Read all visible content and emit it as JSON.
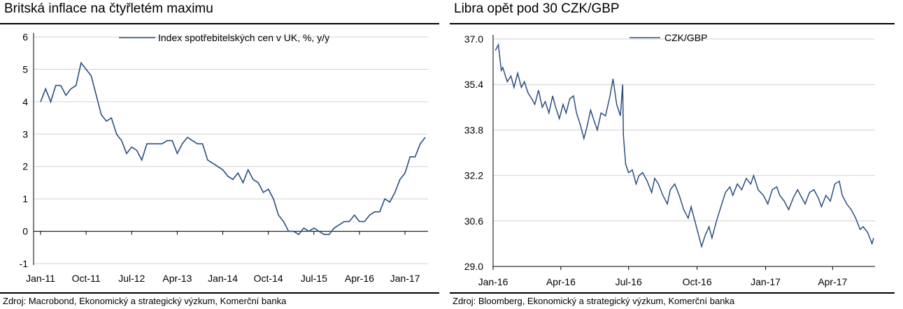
{
  "chart_data": [
    {
      "type": "line",
      "title": "Britská inflace na čtyřletém maximu",
      "source": "Zdroj: Macrobond, Ekonomický a strategický výzkum, Komerční banka",
      "ylim": [
        -1,
        6
      ],
      "yticks": [
        "6",
        "5",
        "4",
        "3",
        "2",
        "1",
        "0",
        "-1"
      ],
      "xticks": [
        "Jan-11",
        "Oct-11",
        "Jul-12",
        "Apr-13",
        "Jan-14",
        "Oct-14",
        "Jul-15",
        "Apr-16",
        "Jan-17"
      ],
      "grid": true,
      "legend_position": "top",
      "line_color": "#2b4f7e",
      "series": [
        {
          "name": "Index spotřebitelských cen v UK, %, y/y",
          "x": [
            "2011-01",
            "2011-02",
            "2011-03",
            "2011-04",
            "2011-05",
            "2011-06",
            "2011-07",
            "2011-08",
            "2011-09",
            "2011-10",
            "2011-11",
            "2011-12",
            "2012-01",
            "2012-02",
            "2012-03",
            "2012-04",
            "2012-05",
            "2012-06",
            "2012-07",
            "2012-08",
            "2012-09",
            "2012-10",
            "2012-11",
            "2012-12",
            "2013-01",
            "2013-02",
            "2013-03",
            "2013-04",
            "2013-05",
            "2013-06",
            "2013-07",
            "2013-08",
            "2013-09",
            "2013-10",
            "2013-11",
            "2013-12",
            "2014-01",
            "2014-02",
            "2014-03",
            "2014-04",
            "2014-05",
            "2014-06",
            "2014-07",
            "2014-08",
            "2014-09",
            "2014-10",
            "2014-11",
            "2014-12",
            "2015-01",
            "2015-02",
            "2015-03",
            "2015-04",
            "2015-05",
            "2015-06",
            "2015-07",
            "2015-08",
            "2015-09",
            "2015-10",
            "2015-11",
            "2015-12",
            "2016-01",
            "2016-02",
            "2016-03",
            "2016-04",
            "2016-05",
            "2016-06",
            "2016-07",
            "2016-08",
            "2016-09",
            "2016-10",
            "2016-11",
            "2016-12",
            "2017-01",
            "2017-02",
            "2017-03",
            "2017-04",
            "2017-05"
          ],
          "values": [
            4.0,
            4.4,
            4.0,
            4.5,
            4.5,
            4.2,
            4.4,
            4.5,
            5.2,
            5.0,
            4.8,
            4.2,
            3.6,
            3.4,
            3.5,
            3.0,
            2.8,
            2.4,
            2.6,
            2.5,
            2.2,
            2.7,
            2.7,
            2.7,
            2.7,
            2.8,
            2.8,
            2.4,
            2.7,
            2.9,
            2.8,
            2.7,
            2.7,
            2.2,
            2.1,
            2.0,
            1.9,
            1.7,
            1.6,
            1.8,
            1.5,
            1.9,
            1.6,
            1.5,
            1.2,
            1.3,
            1.0,
            0.5,
            0.3,
            0.0,
            0.0,
            -0.1,
            0.1,
            0.0,
            0.1,
            0.0,
            -0.1,
            -0.1,
            0.1,
            0.2,
            0.3,
            0.3,
            0.5,
            0.3,
            0.3,
            0.5,
            0.6,
            0.6,
            1.0,
            0.9,
            1.2,
            1.6,
            1.8,
            2.3,
            2.3,
            2.7,
            2.9
          ]
        }
      ]
    },
    {
      "type": "line",
      "title": "Libra opět pod 30 CZK/GBP",
      "source": "Zdroj: Bloomberg, Ekonomický a strategický výzkum, Komerční banka",
      "ylim": [
        29.0,
        37.0
      ],
      "yticks": [
        "37.0",
        "35.4",
        "33.8",
        "32.2",
        "30.6",
        "29.0"
      ],
      "xticks": [
        "Jan-16",
        "Apr-16",
        "Jul-16",
        "Oct-16",
        "Jan-17",
        "Apr-17"
      ],
      "grid": true,
      "legend_position": "top",
      "line_color": "#2b4f7e",
      "series": [
        {
          "name": "CZK/GBP",
          "x": [
            "2016-01-04",
            "2016-01-08",
            "2016-01-12",
            "2016-01-14",
            "2016-01-20",
            "2016-01-25",
            "2016-01-29",
            "2016-02-03",
            "2016-02-08",
            "2016-02-12",
            "2016-02-17",
            "2016-02-22",
            "2016-02-26",
            "2016-03-02",
            "2016-03-07",
            "2016-03-11",
            "2016-03-16",
            "2016-03-21",
            "2016-03-25",
            "2016-03-30",
            "2016-04-04",
            "2016-04-08",
            "2016-04-13",
            "2016-04-18",
            "2016-04-22",
            "2016-04-27",
            "2016-05-02",
            "2016-05-06",
            "2016-05-11",
            "2016-05-16",
            "2016-05-20",
            "2016-05-25",
            "2016-05-31",
            "2016-06-06",
            "2016-06-10",
            "2016-06-15",
            "2016-06-20",
            "2016-06-23",
            "2016-06-24",
            "2016-06-27",
            "2016-07-01",
            "2016-07-06",
            "2016-07-11",
            "2016-07-15",
            "2016-07-20",
            "2016-07-26",
            "2016-08-01",
            "2016-08-05",
            "2016-08-10",
            "2016-08-16",
            "2016-08-22",
            "2016-08-26",
            "2016-09-01",
            "2016-09-07",
            "2016-09-13",
            "2016-09-19",
            "2016-09-23",
            "2016-09-29",
            "2016-10-03",
            "2016-10-07",
            "2016-10-12",
            "2016-10-17",
            "2016-10-21",
            "2016-10-27",
            "2016-11-02",
            "2016-11-08",
            "2016-11-14",
            "2016-11-18",
            "2016-11-24",
            "2016-11-30",
            "2016-12-06",
            "2016-12-12",
            "2016-12-16",
            "2016-12-22",
            "2016-12-29",
            "2017-01-04",
            "2017-01-10",
            "2017-01-16",
            "2017-01-20",
            "2017-01-26",
            "2017-02-01",
            "2017-02-07",
            "2017-02-13",
            "2017-02-17",
            "2017-02-23",
            "2017-03-01",
            "2017-03-07",
            "2017-03-13",
            "2017-03-17",
            "2017-03-23",
            "2017-03-29",
            "2017-04-04",
            "2017-04-10",
            "2017-04-14",
            "2017-04-20",
            "2017-04-26",
            "2017-05-02",
            "2017-05-08",
            "2017-05-12",
            "2017-05-18",
            "2017-05-24",
            "2017-05-26"
          ],
          "values": [
            36.6,
            36.8,
            35.9,
            36.0,
            35.5,
            35.7,
            35.3,
            35.8,
            35.3,
            35.5,
            35.1,
            34.9,
            34.7,
            35.2,
            34.6,
            34.8,
            34.4,
            35.0,
            34.6,
            34.2,
            34.7,
            34.4,
            34.9,
            35.0,
            34.4,
            34.0,
            33.5,
            33.9,
            34.5,
            34.1,
            33.8,
            34.4,
            34.3,
            35.0,
            35.6,
            34.7,
            34.3,
            35.4,
            33.6,
            32.6,
            32.3,
            32.4,
            31.9,
            32.2,
            32.3,
            32.0,
            31.6,
            32.1,
            31.9,
            31.5,
            31.2,
            31.7,
            31.9,
            31.5,
            31.0,
            30.7,
            31.1,
            30.5,
            30.1,
            29.7,
            30.1,
            30.4,
            30.0,
            30.6,
            31.1,
            31.6,
            31.8,
            31.5,
            31.9,
            31.7,
            32.1,
            31.9,
            32.2,
            31.7,
            31.5,
            31.2,
            31.7,
            31.8,
            31.5,
            31.3,
            31.0,
            31.4,
            31.7,
            31.5,
            31.2,
            31.6,
            31.7,
            31.4,
            31.1,
            31.5,
            31.3,
            31.9,
            32.0,
            31.5,
            31.2,
            31.0,
            30.7,
            30.3,
            30.4,
            30.2,
            29.8,
            30.0
          ]
        }
      ]
    }
  ]
}
